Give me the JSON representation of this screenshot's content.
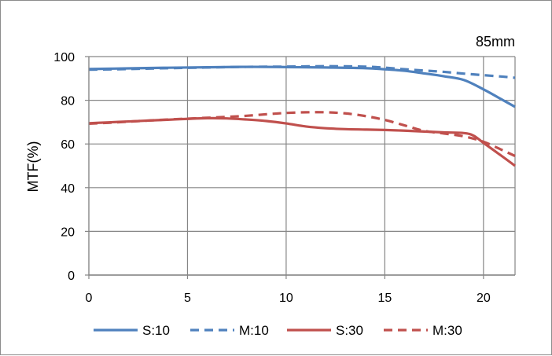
{
  "chart_data": {
    "type": "line",
    "title": "",
    "annotation": "85mm",
    "xlabel": "",
    "ylabel": "MTF(%)",
    "xlim": [
      0,
      21.6
    ],
    "ylim": [
      0,
      100
    ],
    "xticks": [
      0,
      5,
      10,
      15,
      20
    ],
    "yticks": [
      0,
      20,
      40,
      60,
      80,
      100
    ],
    "grid": true,
    "legend_position": "bottom",
    "series": [
      {
        "name": "S:10",
        "color": "#4F81BD",
        "dash": "solid",
        "x": [
          0,
          2,
          4,
          6,
          8,
          10,
          12,
          14,
          15,
          16,
          17,
          18,
          19,
          20,
          21,
          21.6
        ],
        "y": [
          94.3,
          94.6,
          94.9,
          95.1,
          95.3,
          95.2,
          95.0,
          94.7,
          94.2,
          93.5,
          92.3,
          91.0,
          89.3,
          85.0,
          80.0,
          77.0
        ]
      },
      {
        "name": "M:10",
        "color": "#4F81BD",
        "dash": "dashed",
        "x": [
          0,
          2,
          4,
          6,
          8,
          10,
          12,
          14,
          15,
          16,
          17,
          18,
          19,
          20,
          21,
          21.6
        ],
        "y": [
          94.0,
          94.3,
          94.7,
          95.0,
          95.3,
          95.4,
          95.6,
          95.4,
          94.9,
          94.2,
          93.6,
          93.0,
          92.2,
          91.5,
          90.8,
          90.3
        ]
      },
      {
        "name": "S:30",
        "color": "#C0504D",
        "dash": "solid",
        "x": [
          0,
          1,
          2,
          3,
          4,
          5,
          6,
          7,
          8,
          9,
          10,
          11,
          12,
          13,
          14,
          15,
          16,
          17,
          18,
          19,
          19.5,
          20,
          21,
          21.6
        ],
        "y": [
          69.5,
          69.9,
          70.3,
          70.7,
          71.1,
          71.5,
          71.8,
          71.7,
          71.2,
          70.5,
          69.4,
          68.0,
          67.2,
          66.8,
          66.6,
          66.4,
          66.1,
          65.7,
          65.3,
          65.0,
          63.8,
          60.5,
          54.0,
          50.0
        ]
      },
      {
        "name": "M:30",
        "color": "#C0504D",
        "dash": "dashed",
        "x": [
          0,
          1,
          2,
          3,
          4,
          5,
          6,
          7,
          8,
          9,
          10,
          11,
          12,
          13,
          14,
          15,
          16,
          17,
          18,
          19,
          20,
          21,
          21.6
        ],
        "y": [
          69.3,
          69.7,
          70.2,
          70.7,
          71.2,
          71.6,
          72.0,
          72.4,
          72.9,
          73.6,
          74.2,
          74.5,
          74.5,
          74.0,
          72.8,
          71.0,
          68.5,
          66.0,
          64.8,
          63.5,
          61.0,
          57.0,
          54.5
        ]
      }
    ]
  }
}
